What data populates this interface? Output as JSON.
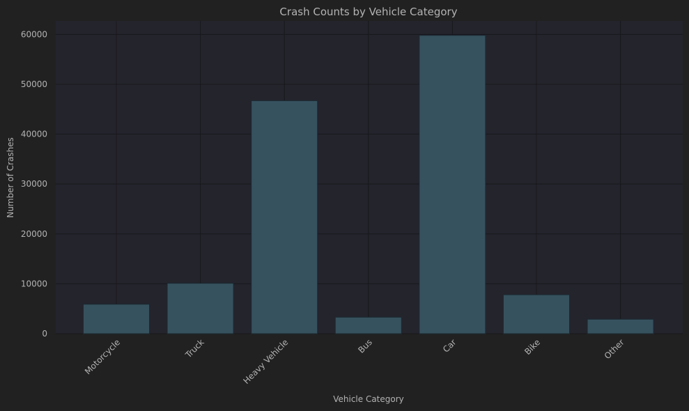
{
  "chart_data": {
    "type": "bar",
    "title": "Crash Counts by Vehicle Category",
    "xlabel": "Vehicle Category",
    "ylabel": "Number of Crashes",
    "categories": [
      "Motorcycle",
      "Truck",
      "Heavy Vehicle",
      "Bus",
      "Car",
      "Bike",
      "Other"
    ],
    "values": [
      5900,
      10100,
      46700,
      3300,
      59800,
      7800,
      2900
    ],
    "ylim": [
      0,
      62700
    ],
    "yticks": [
      0,
      10000,
      20000,
      30000,
      40000,
      50000,
      60000
    ],
    "grid": true,
    "colors": {
      "figure_background": "#212121",
      "plot_background": "#24242d",
      "bar_fill": "#37525f",
      "bar_edge": "#1b2a31",
      "grid": "#17171c",
      "text": "#b3b3b3"
    }
  }
}
